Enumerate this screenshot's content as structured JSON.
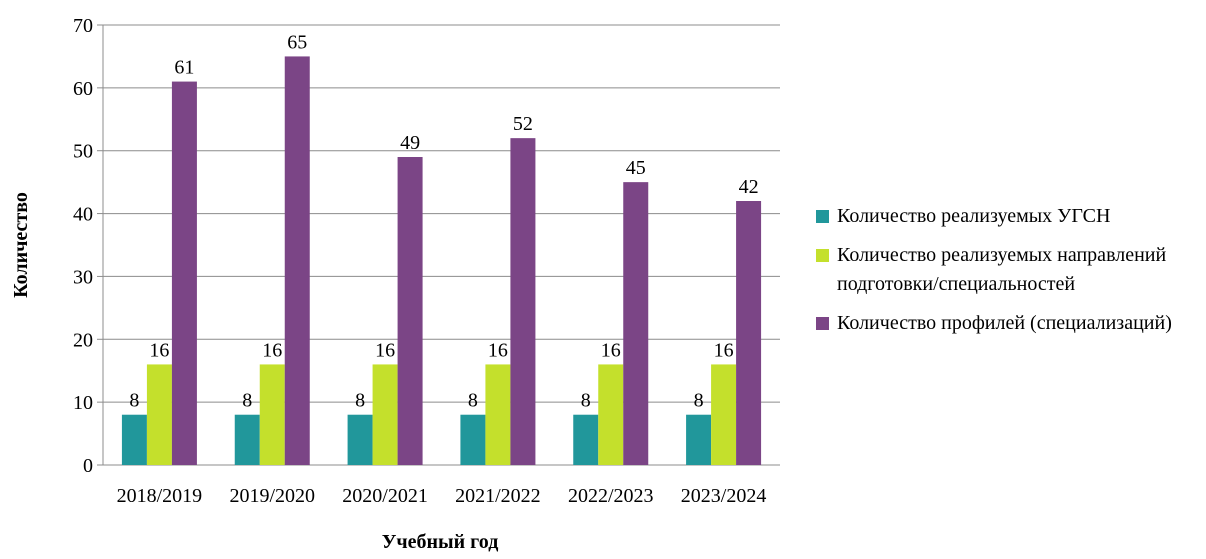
{
  "chart_data": {
    "type": "bar",
    "categories": [
      "2018/2019",
      "2019/2020",
      "2020/2021",
      "2021/2022",
      "2022/2023",
      "2023/2024"
    ],
    "series": [
      {
        "name": "Количество реализуемых УГСН",
        "color": "#21979b",
        "values": [
          8,
          8,
          8,
          8,
          8,
          8
        ]
      },
      {
        "name": "Количество реализуемых направлений подготовки/специальностей",
        "color": "#c4e02c",
        "values": [
          16,
          16,
          16,
          16,
          16,
          16
        ]
      },
      {
        "name": "Количество профилей (специализаций)",
        "color": "#7b4586",
        "values": [
          61,
          65,
          49,
          52,
          45,
          42
        ]
      }
    ],
    "xlabel": "Учебный год",
    "ylabel": "Количество",
    "ylim": [
      0,
      70
    ],
    "yticks": [
      0,
      10,
      20,
      30,
      40,
      50,
      60,
      70
    ],
    "grid": true,
    "legend": "right"
  }
}
